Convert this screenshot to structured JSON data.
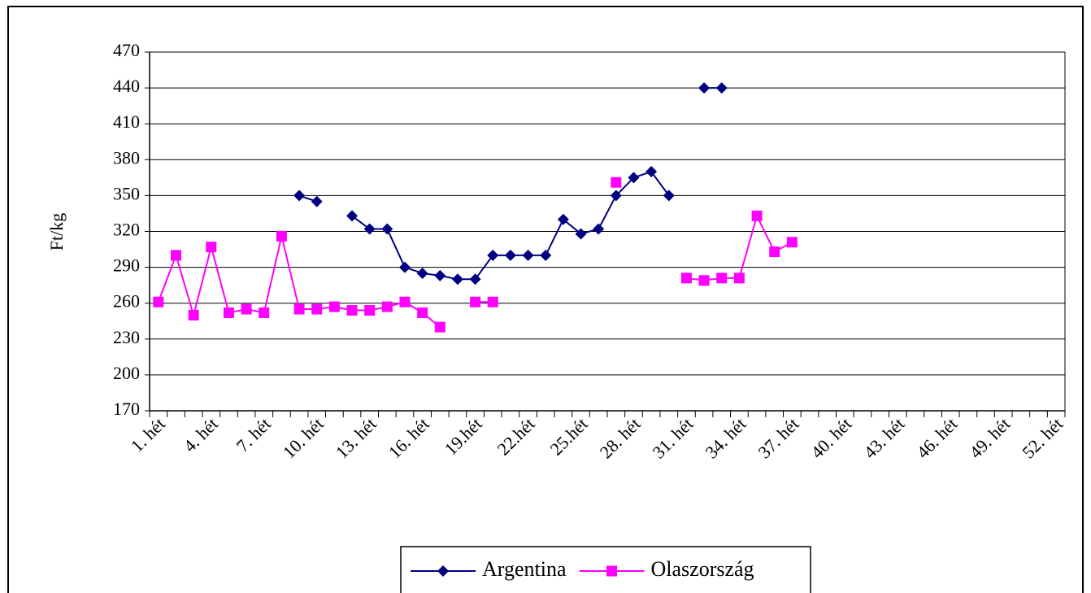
{
  "chart_data": {
    "type": "line",
    "y_label": "Ft/kg",
    "categories": [
      "1. hét",
      null,
      null,
      "4. hét",
      null,
      null,
      "7. hét",
      null,
      null,
      "10. hét",
      null,
      null,
      "13. hét",
      null,
      null,
      "16. hét",
      null,
      null,
      "19.hét",
      null,
      null,
      "22.hét",
      null,
      null,
      "25.hét",
      null,
      null,
      "28. hét",
      null,
      null,
      "31. hét",
      null,
      null,
      "34. hét",
      null,
      null,
      "37. hét",
      null,
      null,
      "40. hét",
      null,
      null,
      "43. hét",
      null,
      null,
      "46. hét",
      null,
      null,
      "49. hét",
      null,
      null,
      "52. hét"
    ],
    "series": [
      {
        "name": "Argentina",
        "color": "#000080",
        "marker": "diamond",
        "values": [
          null,
          null,
          null,
          null,
          null,
          null,
          null,
          null,
          350,
          345,
          null,
          333,
          322,
          322,
          290,
          285,
          283,
          280,
          280,
          300,
          300,
          300,
          300,
          330,
          318,
          322,
          350,
          365,
          370,
          350,
          null,
          440,
          440,
          null,
          null,
          null,
          null,
          null,
          null,
          null,
          null,
          null,
          null,
          null,
          null,
          null,
          null,
          null,
          null,
          null,
          null,
          null
        ]
      },
      {
        "name": "Olaszország",
        "color": "#ff00ff",
        "marker": "square",
        "values": [
          261,
          300,
          250,
          307,
          252,
          255,
          252,
          316,
          255,
          255,
          257,
          254,
          254,
          257,
          261,
          252,
          240,
          null,
          261,
          261,
          null,
          null,
          null,
          null,
          null,
          null,
          361,
          null,
          null,
          null,
          281,
          279,
          281,
          281,
          333,
          303,
          311,
          null,
          null,
          null,
          null,
          null,
          null,
          null,
          null,
          null,
          null,
          null,
          null,
          null,
          null,
          null
        ]
      }
    ],
    "ylim": [
      170,
      470
    ],
    "yticks": [
      170,
      200,
      230,
      260,
      290,
      320,
      350,
      380,
      410,
      440,
      470
    ],
    "grid": true
  }
}
